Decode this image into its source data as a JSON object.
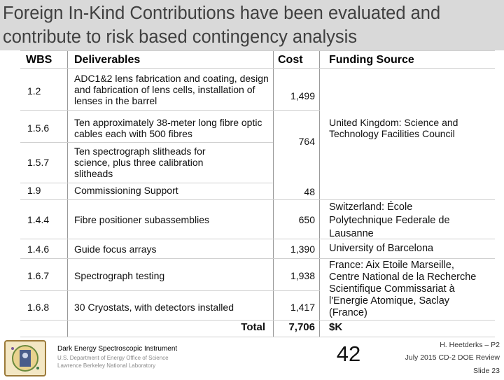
{
  "slide": {
    "title": "Foreign In-Kind Contributions have been evaluated and contribute to risk based contingency analysis"
  },
  "table": {
    "headers": {
      "wbs": "WBS",
      "deliverables": "Deliverables",
      "cost": "Cost",
      "funding": "Funding Source"
    },
    "rows": [
      {
        "wbs": "1.2",
        "deliverable": "ADC1&2 lens fabrication and coating, design and fabrication of lens cells, installation of lenses in the barrel",
        "cost": "1,499"
      },
      {
        "wbs": "1.5.6",
        "deliverable": "Ten approximately 38-meter long fibre optic cables each with 500 fibres",
        "cost": "764"
      },
      {
        "wbs": "1.5.7",
        "deliverable": "Ten spectrograph slitheads for science, plus three calibration slitheads",
        "cost": ""
      },
      {
        "wbs": "1.9",
        "deliverable": "Commissioning Support",
        "cost": "48"
      },
      {
        "wbs": "1.4.4",
        "deliverable": "Fibre positioner subassemblies",
        "cost": "650"
      },
      {
        "wbs": "1.4.6",
        "deliverable": "Guide focus arrays",
        "cost": "1,390"
      },
      {
        "wbs": "1.6.7",
        "deliverable": "Spectrograph testing",
        "cost": "1,938"
      },
      {
        "wbs": "1.6.8",
        "deliverable": "30 Cryostats, with detectors installed",
        "cost": "1,417"
      }
    ],
    "funding": {
      "uk": "United Kingdom: Science and Technology Facilities Council",
      "switzerland": "Switzerland: École Polytechnique Federale de Lausanne",
      "spain": "University of Barcelona",
      "france": "France: Aix Etoile Marseille, Centre National de la Recherche Scientifique Commissariat à l'Energie Atomique, Saclay (France)"
    },
    "total": {
      "label": "Total",
      "value": "7,706",
      "unit": "$K"
    }
  },
  "footer": {
    "lab_line1": "Dark Energy Spectroscopic Instrument",
    "lab_line2": "U.S. Department of Energy Office of Science",
    "lab_line3": "Lawrence Berkeley National Laboratory",
    "page_number": "42",
    "presenter": "H. Heetderks – P2",
    "event": "July 2015 CD-2 DOE Review",
    "slide_label": "Slide 23"
  },
  "colors": {
    "title_background": "#d9d9d9",
    "title_text": "#404040"
  }
}
